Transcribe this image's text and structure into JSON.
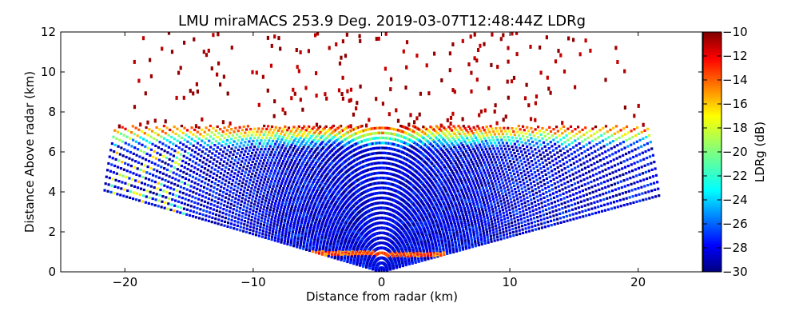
{
  "chart_data": {
    "type": "heatmap",
    "title": "LMU miraMACS 253.9 Deg. 2019-03-07T12:48:44Z  LDRg",
    "xlabel": "Distance from radar (km)",
    "ylabel": "Distance Above radar  (km)",
    "colorbar_label": "LDRg (dB)",
    "xlim": [
      -25,
      25
    ],
    "ylim": [
      0,
      12
    ],
    "clim": [
      -30,
      -10
    ],
    "x_ticks": [
      -20,
      -10,
      0,
      10,
      20
    ],
    "y_ticks": [
      0,
      2,
      4,
      6,
      8,
      10,
      12
    ],
    "colorbar_ticks": [
      -30,
      -28,
      -26,
      -24,
      -22,
      -20,
      -18,
      -16,
      -14,
      -12,
      -10
    ],
    "colormap": "jet",
    "grid": false,
    "scan_geometry": {
      "range_max_km": 22,
      "min_elevation_deg": 10,
      "max_elevation_deg": 170
    },
    "layers": [
      {
        "description_level": "cloud_top_height_km",
        "value": 7.0
      },
      {
        "description_level": "cloud_body_ldr_db",
        "value": -28
      },
      {
        "description_level": "cloud_top_ldr_db",
        "value": -12
      },
      {
        "description_level": "melting_layer_height_km",
        "value": 0.9
      },
      {
        "description_level": "melting_layer_ldr_db",
        "value": -14
      },
      {
        "description_level": "scatter_ldr_db",
        "value": -10
      }
    ]
  },
  "colors": {
    "background": "#ffffff",
    "axes": "#000000",
    "jet": [
      "#00007f",
      "#0000ff",
      "#007fff",
      "#00ffff",
      "#7fff7f",
      "#ffff00",
      "#ff7f00",
      "#ff0000",
      "#7f0000"
    ]
  }
}
